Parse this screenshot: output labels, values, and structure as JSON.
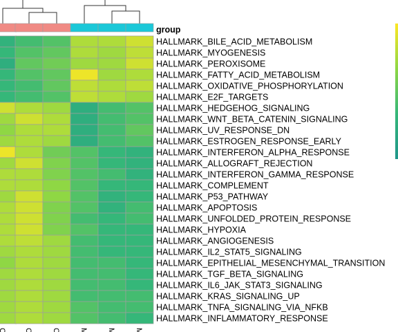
{
  "chart_data": {
    "type": "heatmap",
    "annotation_label": "group",
    "columns": [
      "C",
      "C",
      "C",
      "M",
      "M",
      "M"
    ],
    "column_groups": [
      "C",
      "C",
      "C",
      "M",
      "M",
      "M"
    ],
    "group_colors": {
      "C": "#F08A84",
      "M": "#1BC8D8"
    },
    "rows": [
      "HALLMARK_BILE_ACID_METABOLISM",
      "HALLMARK_MYOGENESIS",
      "HALLMARK_PEROXISOME",
      "HALLMARK_FATTY_ACID_METABOLISM",
      "HALLMARK_OXIDATIVE_PHOSPHORYLATION",
      "HALLMARK_E2F_TARGETS",
      "HALLMARK_HEDGEHOG_SIGNALING",
      "HALLMARK_WNT_BETA_CATENIN_SIGNALING",
      "HALLMARK_UV_RESPONSE_DN",
      "HALLMARK_ESTROGEN_RESPONSE_EARLY",
      "HALLMARK_INTERFERON_ALPHA_RESPONSE",
      "HALLMARK_ALLOGRAFT_REJECTION",
      "HALLMARK_INTERFERON_GAMMA_RESPONSE",
      "HALLMARK_COMPLEMENT",
      "HALLMARK_P53_PATHWAY",
      "HALLMARK_APOPTOSIS",
      "HALLMARK_UNFOLDED_PROTEIN_RESPONSE",
      "HALLMARK_HYPOXIA",
      "HALLMARK_ANGIOGENESIS",
      "HALLMARK_IL2_STAT5_SIGNALING",
      "HALLMARK_EPITHELIAL_MESENCHYMAL_TRANSITION",
      "HALLMARK_TGF_BETA_SIGNALING",
      "HALLMARK_IL6_JAK_STAT3_SIGNALING",
      "HALLMARK_KRAS_SIGNALING_UP",
      "HALLMARK_TNFA_SIGNALING_VIA_NFKB",
      "HALLMARK_INFLAMMATORY_RESPONSE"
    ],
    "values": [
      [
        0.3,
        0.4,
        0.45,
        0.75,
        0.75,
        0.85
      ],
      [
        0.35,
        0.45,
        0.5,
        0.75,
        0.7,
        0.8
      ],
      [
        0.25,
        0.5,
        0.55,
        0.7,
        0.7,
        0.85
      ],
      [
        0.35,
        0.45,
        0.5,
        0.95,
        0.7,
        0.75
      ],
      [
        0.35,
        0.4,
        0.5,
        0.8,
        0.75,
        0.8
      ],
      [
        0.35,
        0.4,
        0.45,
        0.8,
        0.75,
        0.7
      ],
      [
        0.85,
        0.75,
        0.7,
        0.25,
        0.4,
        0.45
      ],
      [
        0.7,
        0.85,
        0.75,
        0.25,
        0.4,
        0.45
      ],
      [
        0.65,
        0.75,
        0.75,
        0.25,
        0.4,
        0.5
      ],
      [
        0.7,
        0.75,
        0.7,
        0.25,
        0.4,
        0.45
      ],
      [
        0.95,
        0.75,
        0.55,
        0.45,
        0.35,
        0.3
      ],
      [
        0.7,
        0.85,
        0.6,
        0.45,
        0.35,
        0.3
      ],
      [
        0.75,
        0.75,
        0.6,
        0.45,
        0.4,
        0.3
      ],
      [
        0.75,
        0.75,
        0.65,
        0.45,
        0.35,
        0.35
      ],
      [
        0.7,
        0.85,
        0.65,
        0.45,
        0.3,
        0.35
      ],
      [
        0.75,
        0.85,
        0.6,
        0.45,
        0.3,
        0.4
      ],
      [
        0.75,
        0.85,
        0.6,
        0.4,
        0.35,
        0.4
      ],
      [
        0.75,
        0.85,
        0.6,
        0.45,
        0.35,
        0.35
      ],
      [
        0.75,
        0.8,
        0.7,
        0.4,
        0.35,
        0.35
      ],
      [
        0.7,
        0.75,
        0.7,
        0.4,
        0.35,
        0.35
      ],
      [
        0.65,
        0.75,
        0.7,
        0.4,
        0.4,
        0.35
      ],
      [
        0.7,
        0.75,
        0.7,
        0.4,
        0.4,
        0.35
      ],
      [
        0.7,
        0.75,
        0.7,
        0.4,
        0.4,
        0.35
      ],
      [
        0.7,
        0.75,
        0.7,
        0.4,
        0.4,
        0.4
      ],
      [
        0.7,
        0.75,
        0.7,
        0.45,
        0.4,
        0.4
      ],
      [
        0.7,
        0.75,
        0.7,
        0.45,
        0.4,
        0.35
      ]
    ],
    "colormap": "viridis (teal to green to yellow)",
    "colorbar_visible_partial": true,
    "dendrogram_top": true,
    "cell_border_color": "#9e9e9e"
  }
}
